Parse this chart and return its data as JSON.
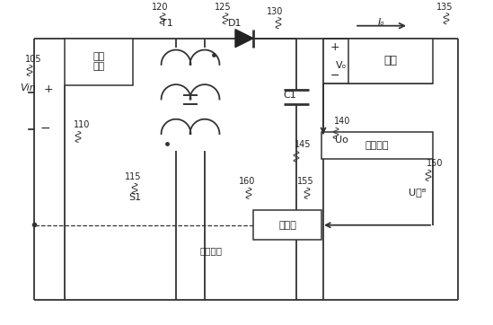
{
  "bg": "#ffffff",
  "lc": "#333333",
  "lw": 1.3,
  "clamp_text": "钓位\n电路",
  "feedback_text": "反馈电路",
  "driver_text": "驱动器",
  "load_text": "负载",
  "drive_signal": "驱动信号",
  "Vin": "Vin",
  "T1": "T1",
  "D1": "D1",
  "C1": "C1",
  "Vo": "Vₒ",
  "Io": "Iₒ",
  "Uo": "Uo",
  "UFB": "U₟ᴮ",
  "S1": "S1",
  "plus": "+",
  "minus": "−",
  "n105": "105",
  "n110": "110",
  "n115": "115",
  "n120": "120",
  "n125": "125",
  "n130": "130",
  "n135": "135",
  "n140": "140",
  "n145": "145",
  "n150": "150",
  "n155": "155",
  "n160": "160"
}
